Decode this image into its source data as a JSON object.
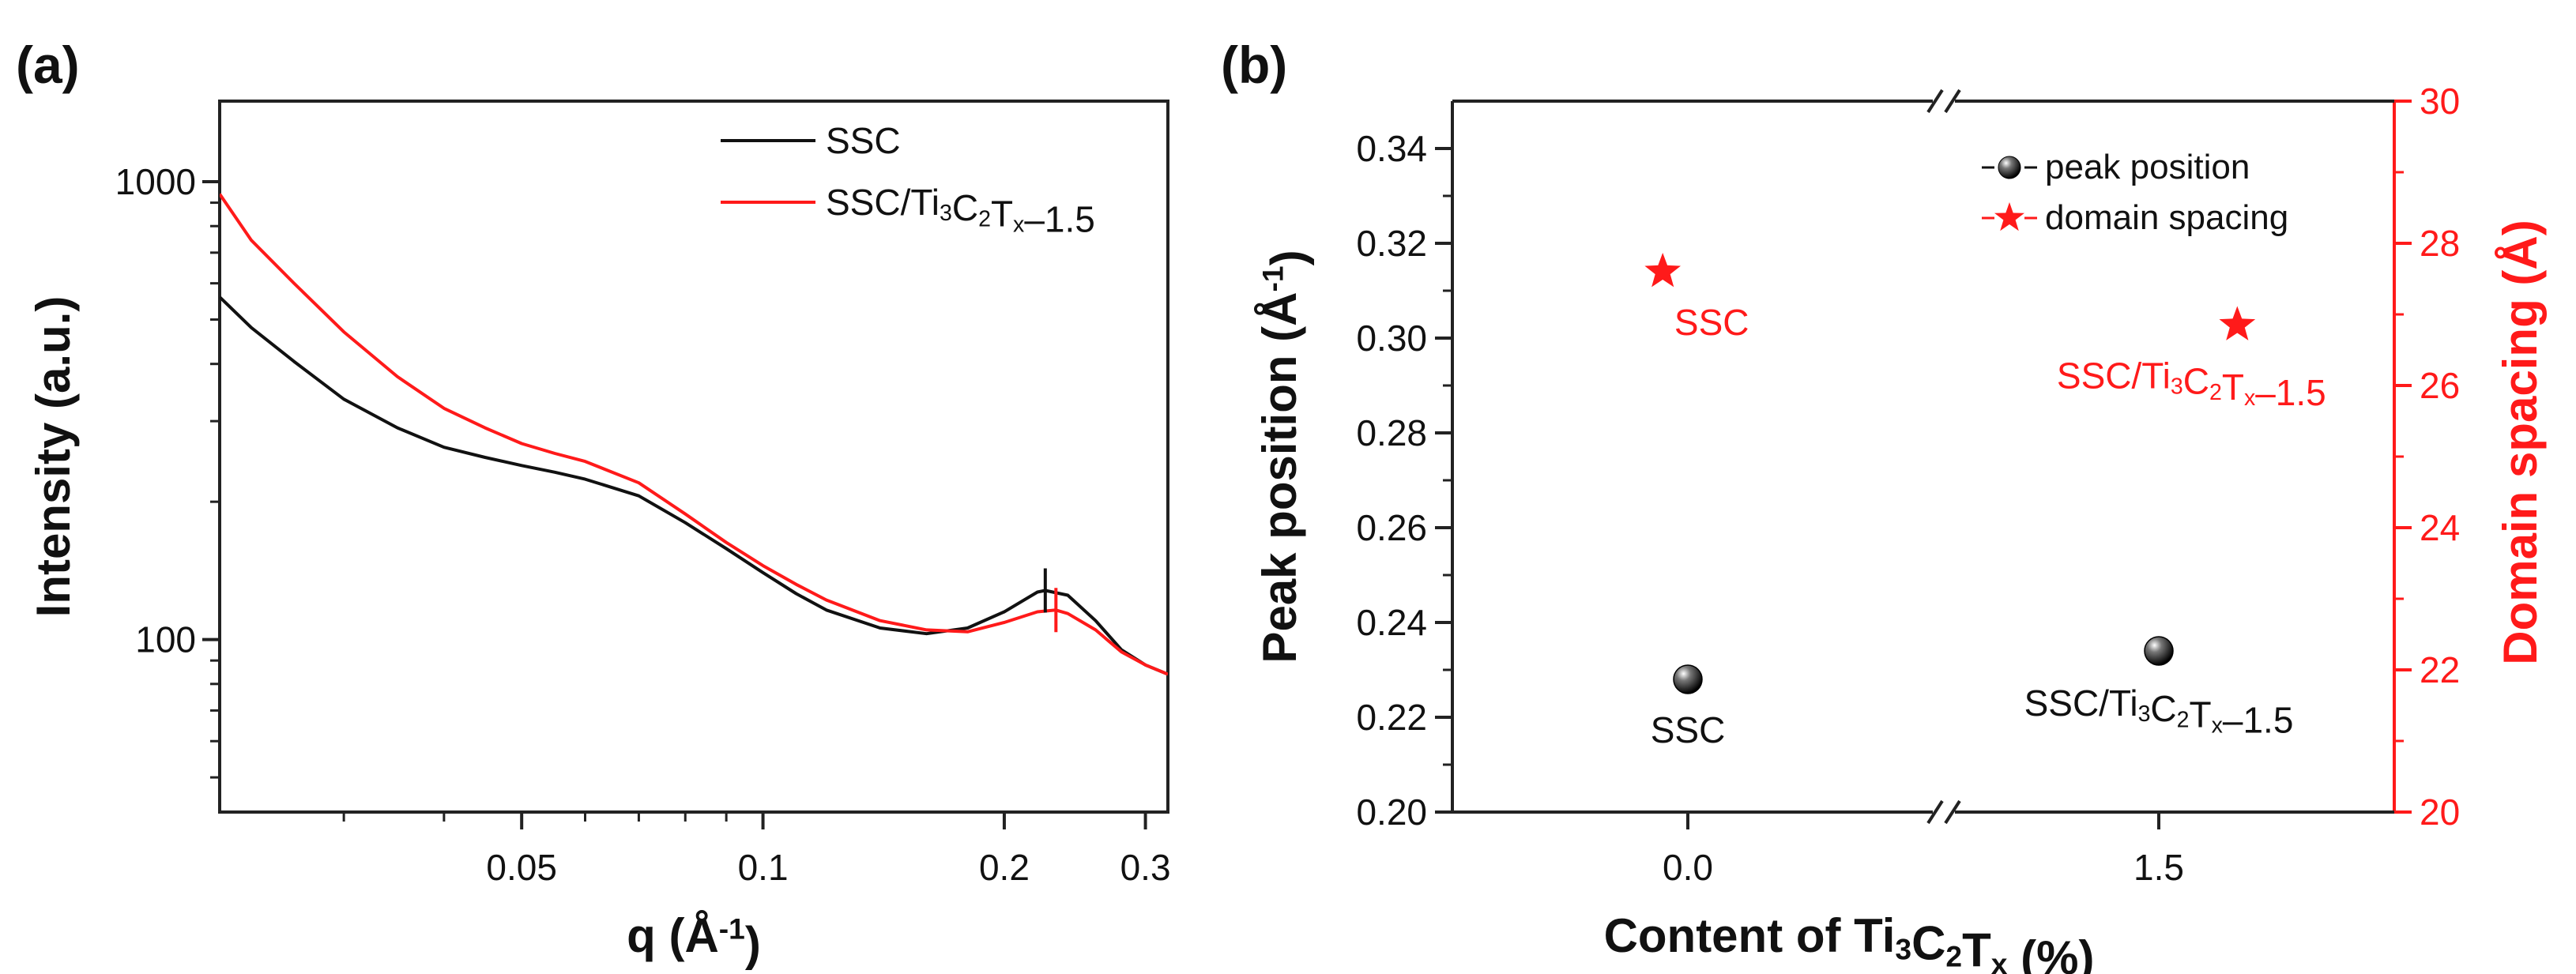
{
  "colors": {
    "black": "#111111",
    "red": "#ff1a1a",
    "frame": "#222222"
  },
  "panel_labels": {
    "a": "(a)",
    "b": "(b)"
  },
  "chart_data": [
    {
      "type": "line",
      "panel": "(a)",
      "xscale": "log",
      "yscale": "log",
      "xlim": [
        0.021,
        0.32
      ],
      "ylim": [
        42,
        1500
      ],
      "xlabel": {
        "main": "q (",
        "unit": "Å",
        "sup": "-1",
        "close": ")"
      },
      "ylabel": "Intensity (a.u.)",
      "xticks": [
        {
          "value": 0.05,
          "label": "0.05"
        },
        {
          "value": 0.1,
          "label": "0.1"
        },
        {
          "value": 0.2,
          "label": "0.2"
        },
        {
          "value": 0.3,
          "label": "0.3"
        }
      ],
      "xminor": [
        0.03,
        0.04,
        0.06,
        0.07,
        0.08,
        0.09
      ],
      "yticks": [
        {
          "value": 100,
          "label": "100"
        },
        {
          "value": 1000,
          "label": "1000"
        }
      ],
      "yminor": [
        50,
        60,
        70,
        80,
        90,
        200,
        300,
        400,
        500,
        600,
        700,
        800,
        900
      ],
      "legend": {
        "position": "top-right",
        "entries": [
          {
            "series": "SSC",
            "parts": [
              {
                "t": "SSC"
              }
            ]
          },
          {
            "series": "SSC/Ti3C2Tx-1.5",
            "parts": [
              {
                "t": "SSC/Ti"
              },
              {
                "t": "3",
                "sub": true
              },
              {
                "t": "C"
              },
              {
                "t": "2",
                "sub": true
              },
              {
                "t": "T"
              },
              {
                "t": "x",
                "sub": true
              },
              {
                "t": "–1.5"
              }
            ]
          }
        ]
      },
      "series": [
        {
          "name": "SSC",
          "color": "#111111",
          "x": [
            0.021,
            0.023,
            0.026,
            0.03,
            0.035,
            0.04,
            0.045,
            0.05,
            0.055,
            0.06,
            0.07,
            0.08,
            0.09,
            0.1,
            0.11,
            0.12,
            0.14,
            0.16,
            0.18,
            0.2,
            0.22,
            0.225,
            0.24,
            0.26,
            0.28,
            0.3,
            0.32
          ],
          "y": [
            560,
            480,
            405,
            335,
            290,
            263,
            250,
            240,
            232,
            224,
            206,
            180,
            158,
            140,
            126,
            116,
            106,
            103,
            106,
            115,
            127,
            128,
            125,
            110,
            95,
            88,
            84
          ]
        },
        {
          "name": "SSC/Ti3C2Tx-1.5",
          "color": "#ff1a1a",
          "x": [
            0.021,
            0.023,
            0.026,
            0.03,
            0.035,
            0.04,
            0.045,
            0.05,
            0.055,
            0.06,
            0.07,
            0.08,
            0.09,
            0.1,
            0.11,
            0.12,
            0.14,
            0.16,
            0.18,
            0.2,
            0.22,
            0.232,
            0.24,
            0.26,
            0.28,
            0.3,
            0.32
          ],
          "y": [
            940,
            745,
            600,
            470,
            375,
            320,
            290,
            268,
            255,
            245,
            220,
            188,
            163,
            145,
            132,
            122,
            110,
            105,
            104,
            109,
            115,
            116,
            114,
            105,
            94,
            88,
            84
          ]
        }
      ],
      "peak_markers": [
        {
          "series": "SSC",
          "x": 0.225,
          "y": 128
        },
        {
          "series": "SSC/Ti3C2Tx-1.5",
          "x": 0.232,
          "y": 116
        }
      ]
    },
    {
      "type": "scatter",
      "panel": "(b)",
      "xlabel": {
        "parts": [
          {
            "t": "Content of Ti"
          },
          {
            "t": "3",
            "sub": true
          },
          {
            "t": "C"
          },
          {
            "t": "2",
            "sub": true
          },
          {
            "t": "T"
          },
          {
            "t": "x",
            "sub": true
          },
          {
            "t": " (%)"
          }
        ]
      },
      "ylabel_left": {
        "main": "Peak position (",
        "unit": "Å",
        "sup": "-1",
        "close": ")"
      },
      "ylabel_right": {
        "main": "Domain spacing (",
        "unit": "Å",
        "close": ")"
      },
      "ylim_left": [
        0.2,
        0.35
      ],
      "ylim_right": [
        20,
        30
      ],
      "yticks_left": [
        "0.20",
        "0.22",
        "0.24",
        "0.26",
        "0.28",
        "0.30",
        "0.32",
        "0.34"
      ],
      "yticks_right": [
        "20",
        "22",
        "24",
        "26",
        "28",
        "30"
      ],
      "xticks": [
        {
          "value": 0.0,
          "label": "0.0"
        },
        {
          "value": 1.5,
          "label": "1.5"
        }
      ],
      "xlim": [
        -0.75,
        2.25
      ],
      "axis_break": "x between 0.0 and 1.5",
      "legend": {
        "position": "top-right",
        "entries": [
          {
            "marker": "sphere",
            "label": "peak position"
          },
          {
            "marker": "star",
            "label": "domain spacing"
          }
        ]
      },
      "series": [
        {
          "name": "peak position",
          "axis": "left",
          "color": "#111111",
          "points": [
            {
              "x": 0.0,
              "y": 0.228
            },
            {
              "x": 1.5,
              "y": 0.234
            }
          ],
          "labels": [
            {
              "parts": [
                {
                  "t": "SSC"
                }
              ]
            },
            {
              "parts": [
                {
                  "t": "SSC/Ti"
                },
                {
                  "t": "3",
                  "sub": true
                },
                {
                  "t": "C"
                },
                {
                  "t": "2",
                  "sub": true
                },
                {
                  "t": "T"
                },
                {
                  "t": "x",
                  "sub": true
                },
                {
                  "t": "–1.5"
                }
              ]
            }
          ]
        },
        {
          "name": "domain spacing",
          "axis": "right",
          "color": "#ff1a1a",
          "points": [
            {
              "x": -0.08,
              "y": 27.6
            },
            {
              "x": 1.75,
              "y": 26.85
            }
          ],
          "labels": [
            {
              "parts": [
                {
                  "t": "SSC"
                }
              ]
            },
            {
              "parts": [
                {
                  "t": "SSC/Ti"
                },
                {
                  "t": "3",
                  "sub": true
                },
                {
                  "t": "C"
                },
                {
                  "t": "2",
                  "sub": true
                },
                {
                  "t": "T"
                },
                {
                  "t": "x",
                  "sub": true
                },
                {
                  "t": "–1.5"
                }
              ]
            }
          ]
        }
      ]
    }
  ]
}
